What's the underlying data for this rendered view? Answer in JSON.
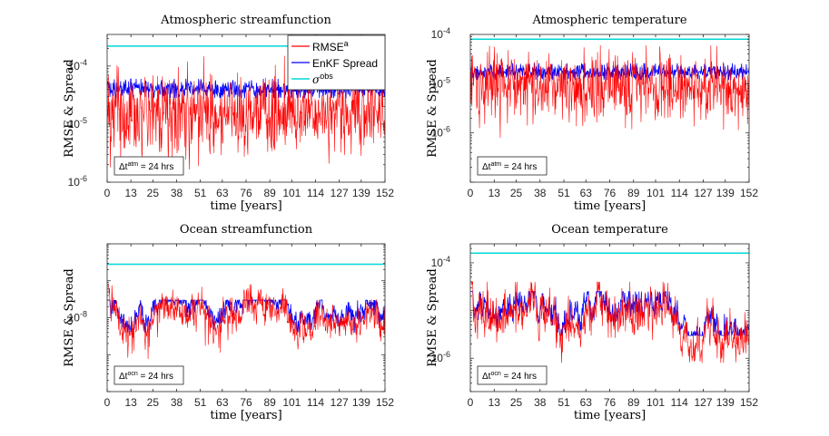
{
  "colors": {
    "rmse": "#ff0000",
    "spread": "#0000ff",
    "obs": "#00d8d8",
    "axes": "#262626",
    "background": "#ffffff"
  },
  "chart_data": [
    {
      "type": "line",
      "title": "Atmospheric streamfunction",
      "xlabel": "time [years]",
      "ylabel": "RMSE & Spread",
      "yscale": "log",
      "xlim": [
        0,
        152
      ],
      "ylim": [
        1e-06,
        0.00035
      ],
      "xticks": [
        0,
        13,
        25,
        38,
        51,
        63,
        76,
        89,
        101,
        114,
        127,
        139,
        152
      ],
      "yticks": [
        {
          "value": 1e-06,
          "base": "10",
          "exp": "-6"
        },
        {
          "value": 1e-05,
          "base": "10",
          "exp": "-5"
        },
        {
          "value": 0.0001,
          "base": "10",
          "exp": "-4"
        }
      ],
      "annotation": {
        "prefix": "Δt",
        "sup": "atm",
        "suffix": " = 24 hrs"
      },
      "legend": {
        "placement": "top-right",
        "entries": [
          {
            "label": "RMSE",
            "sup": "a",
            "color_key": "rmse"
          },
          {
            "label": "EnKF Spread",
            "sup": "",
            "color_key": "spread"
          },
          {
            "label": "σ",
            "sup": "obs",
            "color_key": "obs"
          }
        ]
      },
      "series": [
        {
          "key": "rmse",
          "approx_median": 1.6e-05,
          "approx_range": [
            1.5e-06,
            0.00015
          ]
        },
        {
          "key": "spread",
          "approx_median": 4e-05,
          "approx_range": [
            2.8e-05,
            6e-05
          ]
        },
        {
          "key": "obs",
          "constant": 0.00022
        }
      ]
    },
    {
      "type": "line",
      "title": "Atmospheric temperature",
      "xlabel": "time [years]",
      "ylabel": "RMSE & Spread",
      "yscale": "log",
      "xlim": [
        0,
        152
      ],
      "ylim": [
        1e-07,
        0.0001
      ],
      "xticks": [
        0,
        13,
        25,
        38,
        51,
        63,
        76,
        89,
        101,
        114,
        127,
        139,
        152
      ],
      "yticks": [
        {
          "value": 1e-06,
          "base": "10",
          "exp": "-6"
        },
        {
          "value": 1e-05,
          "base": "10",
          "exp": "-5"
        },
        {
          "value": 0.0001,
          "base": "10",
          "exp": "-4"
        }
      ],
      "annotation": {
        "prefix": "Δt",
        "sup": "atm",
        "suffix": " = 24 hrs"
      },
      "legend": null,
      "series": [
        {
          "key": "rmse",
          "approx_median": 9e-06,
          "approx_range": [
            4e-07,
            6e-05
          ]
        },
        {
          "key": "spread",
          "approx_median": 1.7e-05,
          "approx_range": [
            1.2e-05,
            2.6e-05
          ]
        },
        {
          "key": "obs",
          "constant": 8e-05
        }
      ]
    },
    {
      "type": "line",
      "title": "Ocean streamfunction",
      "xlabel": "time [years]",
      "ylabel": "RMSE & Spread",
      "yscale": "log",
      "xlim": [
        0,
        152
      ],
      "ylim": [
        1e-10,
        1e-06
      ],
      "xticks": [
        0,
        13,
        25,
        38,
        51,
        63,
        76,
        89,
        101,
        114,
        127,
        139,
        152
      ],
      "yticks": [
        {
          "value": 1e-08,
          "base": "10",
          "exp": "-8"
        }
      ],
      "annotation": {
        "prefix": "Δt",
        "sup": "ocn",
        "suffix": " = 24 hrs"
      },
      "legend": null,
      "series": [
        {
          "key": "rmse",
          "approx_median": 7e-09,
          "approx_range": [
            3e-10,
            8e-08
          ]
        },
        {
          "key": "spread",
          "approx_median": 1.2e-08,
          "approx_range": [
            4e-09,
            3e-08
          ]
        },
        {
          "key": "obs",
          "constant": 2.8e-07
        }
      ]
    },
    {
      "type": "line",
      "title": "Ocean temperature",
      "xlabel": "time [years]",
      "ylabel": "RMSE & Spread",
      "yscale": "log",
      "xlim": [
        0,
        152
      ],
      "ylim": [
        2e-07,
        0.00025
      ],
      "xticks": [
        0,
        13,
        25,
        38,
        51,
        63,
        76,
        89,
        101,
        114,
        127,
        139,
        152
      ],
      "yticks": [
        {
          "value": 1e-06,
          "base": "10",
          "exp": "-6"
        },
        {
          "value": 0.0001,
          "base": "10",
          "exp": "-4"
        }
      ],
      "annotation": {
        "prefix": "Δt",
        "sup": "ocn",
        "suffix": " = 24 hrs"
      },
      "legend": null,
      "series": [
        {
          "key": "rmse",
          "approx_median": 5e-06,
          "approx_range": [
            8e-07,
            4e-05
          ]
        },
        {
          "key": "spread",
          "approx_median": 7e-06,
          "approx_range": [
            3e-06,
            2.5e-05
          ]
        },
        {
          "key": "obs",
          "constant": 0.00016
        }
      ]
    }
  ]
}
